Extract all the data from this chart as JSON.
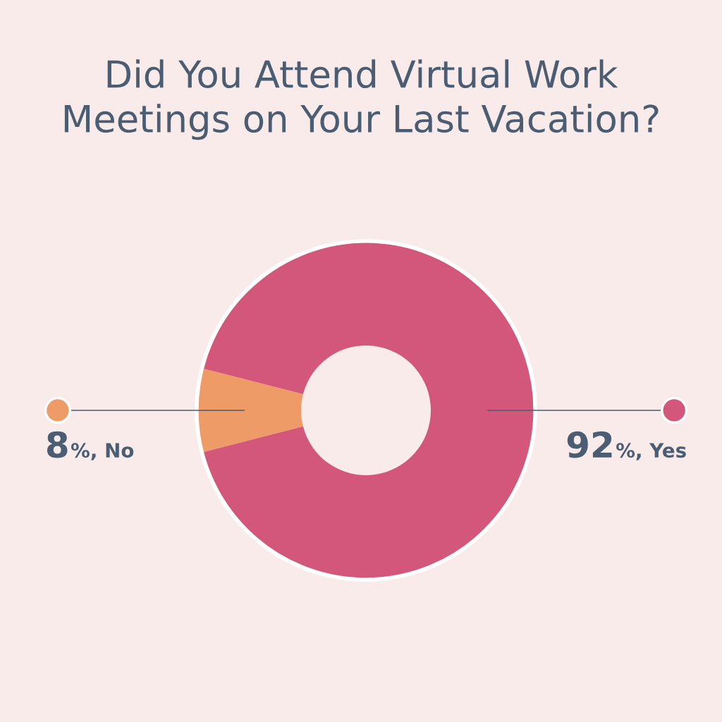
{
  "chart_data": {
    "type": "donut",
    "title": "Did You Attend Virtual Work Meetings on Your Last Vacation?",
    "categories": [
      "No",
      "Yes"
    ],
    "values": [
      8,
      92
    ],
    "colors": [
      "#ee9b67",
      "#d3577a"
    ],
    "value_labels": [
      "8%",
      "92%"
    ],
    "legend": "left right"
  }
}
